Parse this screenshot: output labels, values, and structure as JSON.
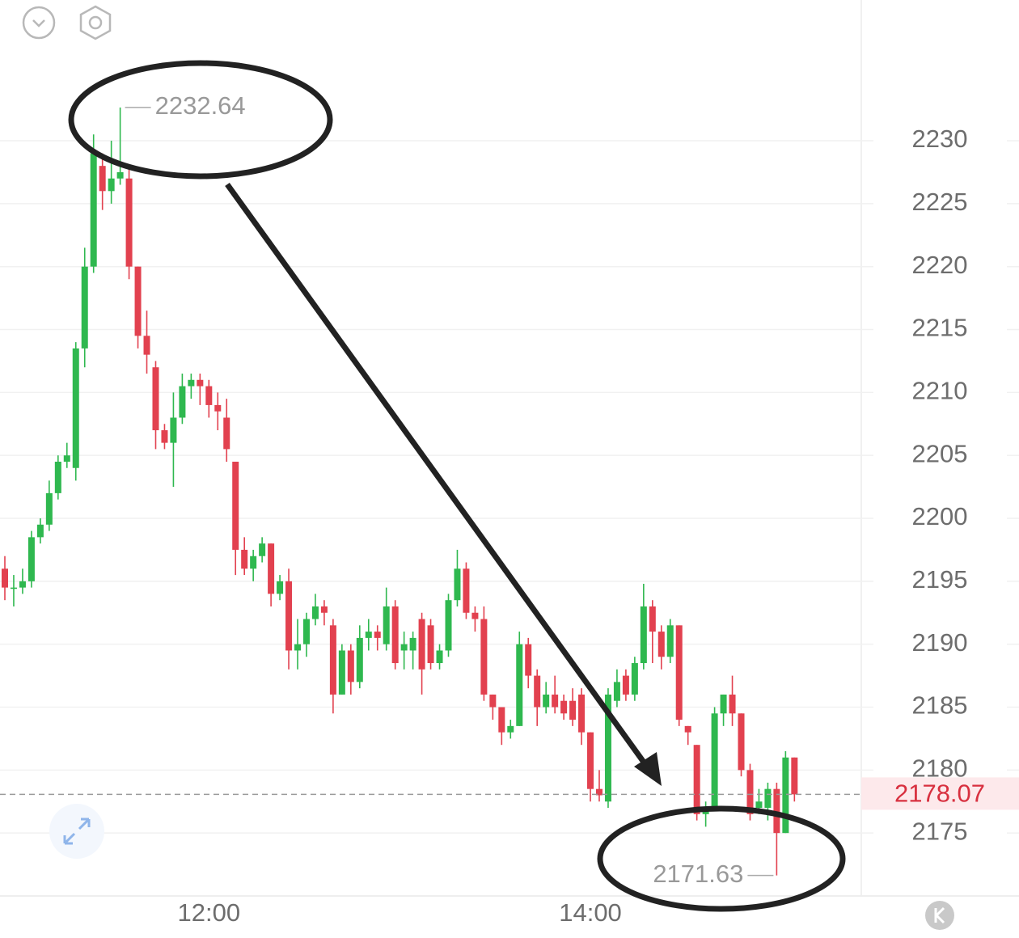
{
  "chart_data": {
    "type": "candlestick",
    "categories": [
      null,
      null,
      null,
      null,
      null,
      null,
      null,
      null,
      null,
      null,
      null,
      null,
      null,
      null,
      null,
      null,
      null,
      null,
      null,
      null,
      null,
      null,
      null,
      "12:00",
      null,
      null,
      null,
      null,
      null,
      null,
      null,
      null,
      null,
      null,
      null,
      null,
      null,
      null,
      null,
      null,
      null,
      null,
      null,
      null,
      null,
      null,
      null,
      null,
      null,
      null,
      null,
      null,
      null,
      null,
      null,
      null,
      null,
      null,
      null,
      null,
      null,
      null,
      null,
      null,
      null,
      null,
      "14:00",
      null,
      null,
      null,
      null,
      null,
      null,
      null,
      null,
      null,
      null,
      null,
      null,
      null,
      null,
      null,
      null,
      null,
      null,
      null,
      null,
      null,
      null,
      null
    ],
    "open": [
      2196,
      2194.5,
      2194.5,
      2195,
      2198.5,
      2199.5,
      2202,
      2204.5,
      2204,
      2213.5,
      2220,
      2228,
      2226,
      2227,
      2227,
      2220,
      2214.5,
      2212,
      2207,
      2206,
      2208,
      2210.5,
      2211,
      2210.5,
      2209,
      2208,
      2204.5,
      2197.5,
      2196,
      2197,
      2198,
      2194,
      2195,
      2189.5,
      2190,
      2192,
      2193,
      2191.5,
      2186,
      2189.5,
      2187,
      2190.5,
      2191,
      2190,
      2193,
      2189.5,
      2189.5,
      2192,
      2191.5,
      2188.5,
      2189.5,
      2193.5,
      2196,
      2192.5,
      2192,
      2186,
      2185,
      2183,
      2183.5,
      2190,
      2187.5,
      2185,
      2186,
      2185.5,
      2185.5,
      2186,
      2183,
      2178.5,
      2177.5,
      2185.5,
      2187.5,
      2186,
      2188.5,
      2193,
      2191,
      2189,
      2191.5,
      2183.5,
      2182,
      2176.5,
      2177,
      2184.5,
      2186,
      2184.5,
      2180,
      2177,
      2177,
      2178.5,
      2175,
      2181
    ],
    "high": [
      2197,
      2195.5,
      2196,
      2199,
      2200,
      2203,
      2205,
      2206,
      2214,
      2221.5,
      2230.5,
      2229,
      2230,
      2232.64,
      2228,
      2220,
      2216.5,
      2212.5,
      2207.5,
      2210,
      2211.5,
      2211.5,
      2211.5,
      2211,
      2210,
      2209.5,
      2204.5,
      2198.5,
      2197.5,
      2198.5,
      2198,
      2195.5,
      2196,
      2192,
      2192.5,
      2194,
      2193.5,
      2192,
      2190,
      2190,
      2191.5,
      2192,
      2191.5,
      2194.5,
      2193.5,
      2191,
      2191,
      2192.5,
      2192,
      2190,
      2194,
      2197.5,
      2196.5,
      2193,
      2193,
      2186,
      2185,
      2184,
      2191,
      2190.5,
      2188,
      2187,
      2187.5,
      2186,
      2186.5,
      2186.5,
      2183,
      2180,
      2186.5,
      2188,
      2188,
      2189,
      2194.8,
      2193.5,
      2191.5,
      2192,
      2191.5,
      2183.5,
      2182,
      2177.5,
      2185,
      2186,
      2187.5,
      2184.5,
      2180.5,
      2178.5,
      2179,
      2179,
      2181.5,
      2181
    ],
    "low": [
      2193.5,
      2193,
      2194,
      2194.5,
      2198,
      2199,
      2201.5,
      2204,
      2203,
      2212,
      2219.5,
      2224.5,
      2225,
      2226.5,
      2219,
      2213.5,
      2211.5,
      2205.5,
      2205.5,
      2202.5,
      2207.5,
      2209.5,
      2209,
      2208,
      2207,
      2204.5,
      2195.5,
      2195.5,
      2195,
      2196.5,
      2193,
      2193.5,
      2188,
      2188,
      2189,
      2191.5,
      2191.5,
      2184.5,
      2186,
      2186,
      2186.5,
      2189.5,
      2189.5,
      2189.5,
      2188,
      2188,
      2188,
      2186,
      2188,
      2188,
      2189,
      2193,
      2192,
      2191,
      2185.5,
      2184,
      2182,
      2182.5,
      2183.5,
      2186.5,
      2183.5,
      2184.5,
      2184.5,
      2184,
      2183.5,
      2182,
      2177.5,
      2177.5,
      2177,
      2185,
      2185.5,
      2185.5,
      2188,
      2188.5,
      2188,
      2188.5,
      2183.5,
      2182,
      2176,
      2175.5,
      2177,
      2183.5,
      2183.5,
      2179.5,
      2176,
      2176.5,
      2176,
      2171.63,
      2175,
      2177.5
    ],
    "close": [
      2194.5,
      2194.5,
      2195,
      2198.5,
      2199.5,
      2202,
      2204.5,
      2205,
      2213.5,
      2220,
      2229,
      2226,
      2227,
      2227.5,
      2220,
      2214.5,
      2213,
      2207,
      2206,
      2208,
      2210.5,
      2211,
      2210.5,
      2209,
      2208.5,
      2205.5,
      2197.5,
      2196,
      2197,
      2198,
      2194,
      2195,
      2189.5,
      2190,
      2192,
      2193,
      2192.5,
      2186,
      2189.5,
      2187,
      2190.5,
      2191,
      2190.5,
      2193,
      2188.5,
      2190,
      2190.5,
      2188,
      2188.5,
      2189.5,
      2193.5,
      2196,
      2192.5,
      2192,
      2186,
      2185,
      2183,
      2183.5,
      2190,
      2187.5,
      2185,
      2186,
      2185,
      2184.5,
      2184,
      2183,
      2178.5,
      2178,
      2186,
      2187,
      2186,
      2188.5,
      2193,
      2191,
      2189,
      2191.5,
      2184,
      2183,
      2176.5,
      2177,
      2184.5,
      2186,
      2184.5,
      2180,
      2176.5,
      2177.5,
      2178.5,
      2175,
      2181,
      2178.07
    ],
    "up_color": "#2fb84f",
    "down_color": "#e2414f",
    "ylim": [
      2170,
      2241.18
    ],
    "yticks": [
      2175,
      2180,
      2185,
      2190,
      2195,
      2200,
      2205,
      2210,
      2215,
      2220,
      2225,
      2230
    ],
    "grid": true,
    "high_marker": 13,
    "low_marker": 87
  }
}
